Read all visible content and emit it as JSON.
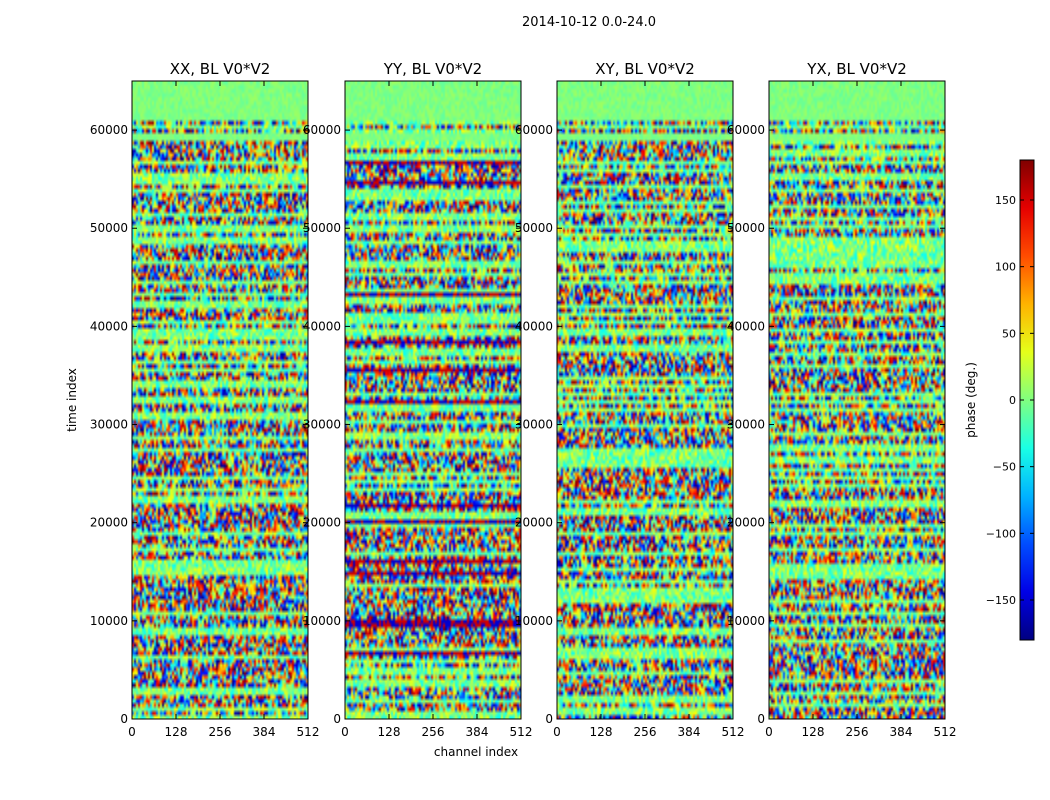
{
  "figure": {
    "suptitle": "2014-10-12 0.0-24.0"
  },
  "chart_data": {
    "type": "heatmap",
    "suptitle": "2014-10-12 0.0-24.0",
    "xlabel": "channel index",
    "ylabel": "time index",
    "xlim": [
      0,
      512
    ],
    "ylim": [
      0,
      65000
    ],
    "xticks": [
      0,
      128,
      256,
      384,
      512
    ],
    "xtick_labels": [
      "0",
      "128",
      "256",
      "384",
      "512"
    ],
    "yticks": [
      0,
      10000,
      20000,
      30000,
      40000,
      50000,
      60000
    ],
    "ytick_labels": [
      "0",
      "10000",
      "20000",
      "30000",
      "40000",
      "50000",
      "60000"
    ],
    "colorbar": {
      "label": "phase (deg.)",
      "range": [
        -180,
        180
      ],
      "ticks": [
        150,
        100,
        50,
        0,
        -50,
        -100,
        -150
      ],
      "tick_labels": [
        "150",
        "100",
        "50",
        "0",
        "−50",
        "−100",
        "−150"
      ],
      "colormap": "jet"
    },
    "panels": [
      {
        "title": "XX, BL V0*V2",
        "seed": 11
      },
      {
        "title": "YY, BL V0*V2",
        "seed": 23
      },
      {
        "title": "XY, BL V0*V2",
        "seed": 37
      },
      {
        "title": "YX, BL V0*V2",
        "seed": 53
      }
    ]
  }
}
